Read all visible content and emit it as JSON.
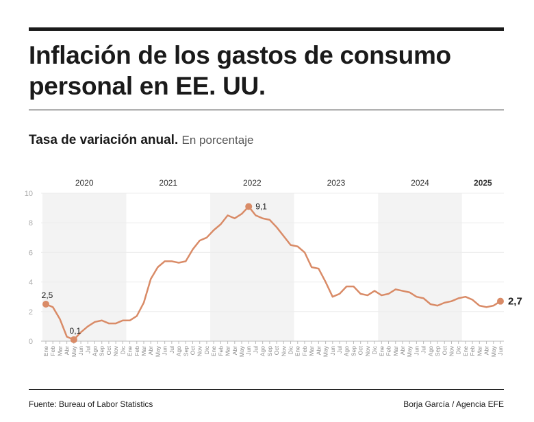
{
  "header": {
    "title": "Inflación de los gastos de consumo personal en EE. UU.",
    "subtitle": "Tasa de variación anual.",
    "unit": "En porcentaje"
  },
  "footer": {
    "source": "Fuente: Bureau of Labor Statistics",
    "credit": "Borja García / Agencia EFE"
  },
  "chart_data": {
    "type": "line",
    "ylim": [
      0,
      10
    ],
    "yticks": [
      "0",
      "2",
      "4",
      "6",
      "8",
      "10"
    ],
    "grid": true,
    "line_color": "#d98b67",
    "band_color": "#f3f3f3",
    "years": [
      {
        "label": "2020",
        "shaded": true,
        "bold": false
      },
      {
        "label": "2021",
        "shaded": false,
        "bold": false
      },
      {
        "label": "2022",
        "shaded": true,
        "bold": false
      },
      {
        "label": "2023",
        "shaded": false,
        "bold": false
      },
      {
        "label": "2024",
        "shaded": true,
        "bold": false
      },
      {
        "label": "2025",
        "shaded": false,
        "bold": true
      }
    ],
    "month_labels": [
      "Ene",
      "Feb",
      "Mar",
      "Abr",
      "May",
      "Jun",
      "Jul",
      "Ago",
      "Sep",
      "Oct",
      "Nov",
      "Dic"
    ],
    "values": [
      2.5,
      2.3,
      1.5,
      0.3,
      0.1,
      0.6,
      1.0,
      1.3,
      1.4,
      1.2,
      1.2,
      1.4,
      1.4,
      1.7,
      2.6,
      4.2,
      5.0,
      5.4,
      5.4,
      5.3,
      5.4,
      6.2,
      6.8,
      7.0,
      7.5,
      7.9,
      8.5,
      8.3,
      8.6,
      9.1,
      8.5,
      8.3,
      8.2,
      7.7,
      7.1,
      6.5,
      6.4,
      6.0,
      5.0,
      4.9,
      4.0,
      3.0,
      3.2,
      3.7,
      3.7,
      3.2,
      3.1,
      3.4,
      3.1,
      3.2,
      3.5,
      3.4,
      3.3,
      3.0,
      2.9,
      2.5,
      2.4,
      2.6,
      2.7,
      2.9,
      3.0,
      2.8,
      2.4,
      2.3,
      2.4,
      2.7
    ],
    "annotations": [
      {
        "index": 0,
        "label": "2,5",
        "bold": false
      },
      {
        "index": 4,
        "label": "0,1",
        "bold": false
      },
      {
        "index": 29,
        "label": "9,1",
        "bold": false
      },
      {
        "index": 65,
        "label": "2,7",
        "bold": true
      }
    ]
  }
}
